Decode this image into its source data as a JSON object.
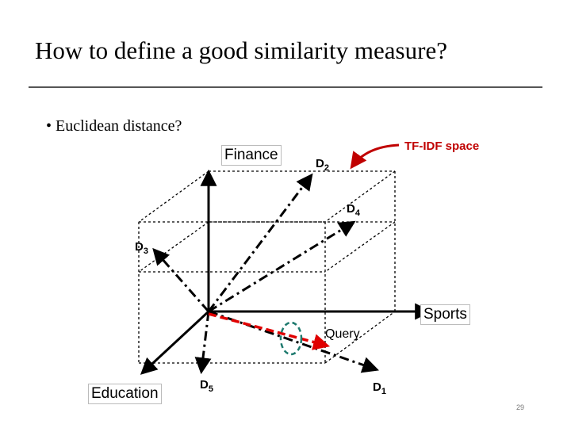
{
  "title": "How to define a good similarity measure?",
  "bullet": "• Euclidean distance?",
  "axes": {
    "finance": "Finance",
    "sports": "Sports",
    "education": "Education"
  },
  "space_label": "TF-IDF space",
  "documents": [
    {
      "id": "D",
      "sub": "1"
    },
    {
      "id": "D",
      "sub": "2"
    },
    {
      "id": "D",
      "sub": "3"
    },
    {
      "id": "D",
      "sub": "4"
    },
    {
      "id": "D",
      "sub": "5"
    }
  ],
  "query_label": "Query",
  "page_number": "29",
  "colors": {
    "query_vector": "#e00000",
    "arrow_annotation": "#c00000",
    "query_ellipse": "#1e7a6e"
  }
}
